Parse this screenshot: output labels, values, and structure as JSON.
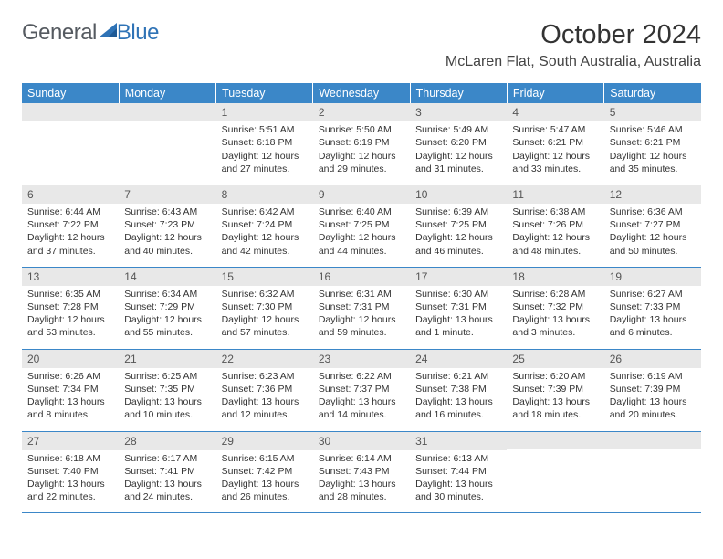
{
  "logo": {
    "textGeneral": "General",
    "textBlue": "Blue"
  },
  "title": "October 2024",
  "location": "McLaren Flat, South Australia, Australia",
  "header_bg_color": "#3b87c8",
  "daynum_bg_color": "#e8e8e8",
  "row_divider_color": "#3b87c8",
  "page_bg_color": "#ffffff",
  "font_family": "Arial, Helvetica, sans-serif",
  "day_headers": [
    "Sunday",
    "Monday",
    "Tuesday",
    "Wednesday",
    "Thursday",
    "Friday",
    "Saturday"
  ],
  "weeks": [
    [
      null,
      null,
      {
        "n": "1",
        "sunrise": "5:51 AM",
        "sunset": "6:18 PM",
        "daylight1": "Daylight: 12 hours",
        "daylight2": "and 27 minutes."
      },
      {
        "n": "2",
        "sunrise": "5:50 AM",
        "sunset": "6:19 PM",
        "daylight1": "Daylight: 12 hours",
        "daylight2": "and 29 minutes."
      },
      {
        "n": "3",
        "sunrise": "5:49 AM",
        "sunset": "6:20 PM",
        "daylight1": "Daylight: 12 hours",
        "daylight2": "and 31 minutes."
      },
      {
        "n": "4",
        "sunrise": "5:47 AM",
        "sunset": "6:21 PM",
        "daylight1": "Daylight: 12 hours",
        "daylight2": "and 33 minutes."
      },
      {
        "n": "5",
        "sunrise": "5:46 AM",
        "sunset": "6:21 PM",
        "daylight1": "Daylight: 12 hours",
        "daylight2": "and 35 minutes."
      }
    ],
    [
      {
        "n": "6",
        "sunrise": "6:44 AM",
        "sunset": "7:22 PM",
        "daylight1": "Daylight: 12 hours",
        "daylight2": "and 37 minutes."
      },
      {
        "n": "7",
        "sunrise": "6:43 AM",
        "sunset": "7:23 PM",
        "daylight1": "Daylight: 12 hours",
        "daylight2": "and 40 minutes."
      },
      {
        "n": "8",
        "sunrise": "6:42 AM",
        "sunset": "7:24 PM",
        "daylight1": "Daylight: 12 hours",
        "daylight2": "and 42 minutes."
      },
      {
        "n": "9",
        "sunrise": "6:40 AM",
        "sunset": "7:25 PM",
        "daylight1": "Daylight: 12 hours",
        "daylight2": "and 44 minutes."
      },
      {
        "n": "10",
        "sunrise": "6:39 AM",
        "sunset": "7:25 PM",
        "daylight1": "Daylight: 12 hours",
        "daylight2": "and 46 minutes."
      },
      {
        "n": "11",
        "sunrise": "6:38 AM",
        "sunset": "7:26 PM",
        "daylight1": "Daylight: 12 hours",
        "daylight2": "and 48 minutes."
      },
      {
        "n": "12",
        "sunrise": "6:36 AM",
        "sunset": "7:27 PM",
        "daylight1": "Daylight: 12 hours",
        "daylight2": "and 50 minutes."
      }
    ],
    [
      {
        "n": "13",
        "sunrise": "6:35 AM",
        "sunset": "7:28 PM",
        "daylight1": "Daylight: 12 hours",
        "daylight2": "and 53 minutes."
      },
      {
        "n": "14",
        "sunrise": "6:34 AM",
        "sunset": "7:29 PM",
        "daylight1": "Daylight: 12 hours",
        "daylight2": "and 55 minutes."
      },
      {
        "n": "15",
        "sunrise": "6:32 AM",
        "sunset": "7:30 PM",
        "daylight1": "Daylight: 12 hours",
        "daylight2": "and 57 minutes."
      },
      {
        "n": "16",
        "sunrise": "6:31 AM",
        "sunset": "7:31 PM",
        "daylight1": "Daylight: 12 hours",
        "daylight2": "and 59 minutes."
      },
      {
        "n": "17",
        "sunrise": "6:30 AM",
        "sunset": "7:31 PM",
        "daylight1": "Daylight: 13 hours",
        "daylight2": "and 1 minute."
      },
      {
        "n": "18",
        "sunrise": "6:28 AM",
        "sunset": "7:32 PM",
        "daylight1": "Daylight: 13 hours",
        "daylight2": "and 3 minutes."
      },
      {
        "n": "19",
        "sunrise": "6:27 AM",
        "sunset": "7:33 PM",
        "daylight1": "Daylight: 13 hours",
        "daylight2": "and 6 minutes."
      }
    ],
    [
      {
        "n": "20",
        "sunrise": "6:26 AM",
        "sunset": "7:34 PM",
        "daylight1": "Daylight: 13 hours",
        "daylight2": "and 8 minutes."
      },
      {
        "n": "21",
        "sunrise": "6:25 AM",
        "sunset": "7:35 PM",
        "daylight1": "Daylight: 13 hours",
        "daylight2": "and 10 minutes."
      },
      {
        "n": "22",
        "sunrise": "6:23 AM",
        "sunset": "7:36 PM",
        "daylight1": "Daylight: 13 hours",
        "daylight2": "and 12 minutes."
      },
      {
        "n": "23",
        "sunrise": "6:22 AM",
        "sunset": "7:37 PM",
        "daylight1": "Daylight: 13 hours",
        "daylight2": "and 14 minutes."
      },
      {
        "n": "24",
        "sunrise": "6:21 AM",
        "sunset": "7:38 PM",
        "daylight1": "Daylight: 13 hours",
        "daylight2": "and 16 minutes."
      },
      {
        "n": "25",
        "sunrise": "6:20 AM",
        "sunset": "7:39 PM",
        "daylight1": "Daylight: 13 hours",
        "daylight2": "and 18 minutes."
      },
      {
        "n": "26",
        "sunrise": "6:19 AM",
        "sunset": "7:39 PM",
        "daylight1": "Daylight: 13 hours",
        "daylight2": "and 20 minutes."
      }
    ],
    [
      {
        "n": "27",
        "sunrise": "6:18 AM",
        "sunset": "7:40 PM",
        "daylight1": "Daylight: 13 hours",
        "daylight2": "and 22 minutes."
      },
      {
        "n": "28",
        "sunrise": "6:17 AM",
        "sunset": "7:41 PM",
        "daylight1": "Daylight: 13 hours",
        "daylight2": "and 24 minutes."
      },
      {
        "n": "29",
        "sunrise": "6:15 AM",
        "sunset": "7:42 PM",
        "daylight1": "Daylight: 13 hours",
        "daylight2": "and 26 minutes."
      },
      {
        "n": "30",
        "sunrise": "6:14 AM",
        "sunset": "7:43 PM",
        "daylight1": "Daylight: 13 hours",
        "daylight2": "and 28 minutes."
      },
      {
        "n": "31",
        "sunrise": "6:13 AM",
        "sunset": "7:44 PM",
        "daylight1": "Daylight: 13 hours",
        "daylight2": "and 30 minutes."
      },
      null,
      null
    ]
  ]
}
